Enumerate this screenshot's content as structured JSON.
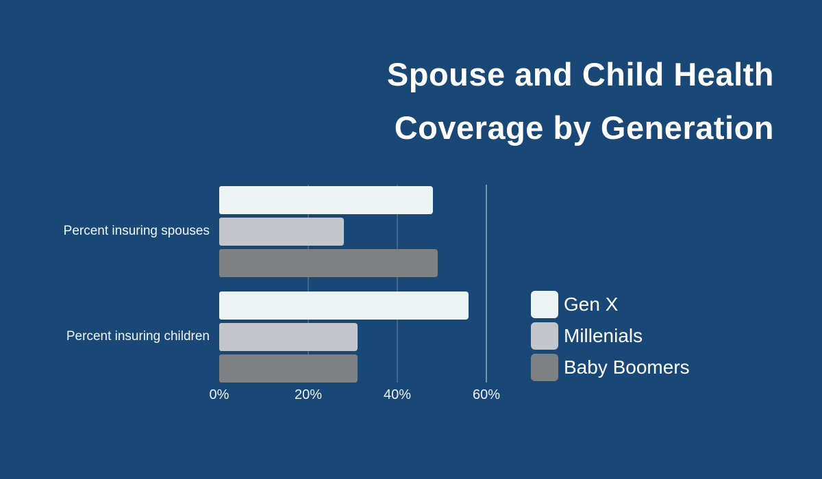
{
  "page": {
    "background_color": "#1A4876",
    "text_color": "#FFFFFF",
    "gridline_color": "rgba(255,255,255,0.17)",
    "gridline_major_color": "rgba(255,255,255,0.40)"
  },
  "title": {
    "line1": "Spouse and Child Health",
    "line2": "Coverage by Generation"
  },
  "chart_data": {
    "type": "bar",
    "orientation": "horizontal",
    "title": "Spouse and Child Health Coverage by Generation",
    "categories": [
      "Percent insuring spouses",
      "Percent insuring children"
    ],
    "series": [
      {
        "name": "Gen X",
        "color": "#EBF4F3",
        "values": [
          48,
          56
        ]
      },
      {
        "name": "Millenials",
        "color": "#C3C7CB",
        "values": [
          28,
          31
        ]
      },
      {
        "name": "Baby Boomers",
        "color": "#7E8184",
        "values": [
          49,
          31
        ]
      }
    ],
    "x_axis": {
      "tick_labels": [
        "0%",
        "20%",
        "40%",
        "60%"
      ],
      "tick_values": [
        0,
        20,
        40,
        60
      ],
      "range": [
        0,
        66
      ],
      "unit": "percent"
    },
    "grid": true,
    "legend_position": "right"
  }
}
